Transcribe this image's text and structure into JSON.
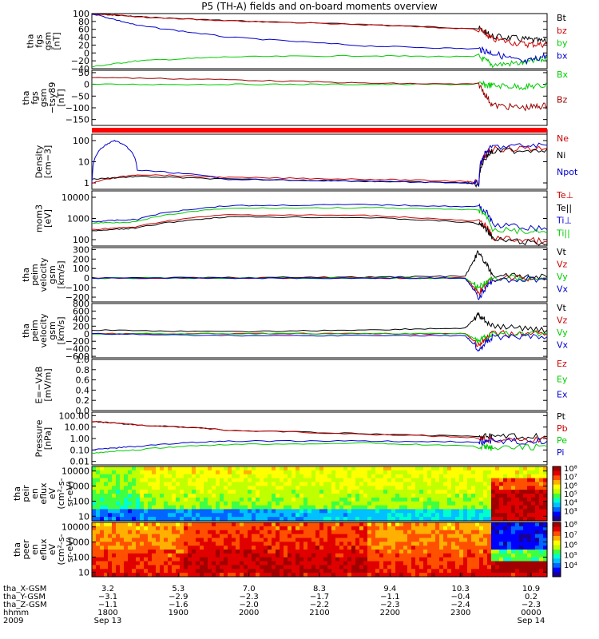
{
  "title": "P5 (TH-A) fields and on-board moments overview",
  "chart_data": [
    {
      "type": "line",
      "ylabel_lines": [
        "tha",
        "fgs",
        "gsm",
        "[nT]"
      ],
      "yticks": [
        "100",
        "80",
        "60",
        "40",
        "20",
        "0",
        "−20",
        "−40"
      ],
      "ylim": [
        -40,
        100
      ],
      "series": [
        {
          "name": "Bt",
          "color": "#000000",
          "x": [
            0,
            0.1,
            0.3,
            0.6,
            0.85,
            0.88,
            0.95,
            1
          ],
          "y": [
            100,
            92,
            82,
            72,
            62,
            42,
            35,
            28
          ]
        },
        {
          "name": "bz",
          "color": "#cc0000",
          "x": [
            0,
            0.1,
            0.3,
            0.6,
            0.85,
            0.88,
            0.95,
            1
          ],
          "y": [
            100,
            92,
            82,
            72,
            60,
            35,
            22,
            22
          ]
        },
        {
          "name": "by",
          "color": "#00cc00",
          "x": [
            0,
            0.1,
            0.3,
            0.6,
            0.85,
            0.88,
            0.95,
            1
          ],
          "y": [
            -35,
            -20,
            -10,
            -7,
            -10,
            -30,
            -25,
            -15
          ]
        },
        {
          "name": "bx",
          "color": "#0000cc",
          "x": [
            0,
            0.1,
            0.3,
            0.6,
            0.85,
            0.88,
            0.95,
            1
          ],
          "y": [
            100,
            70,
            40,
            18,
            10,
            0,
            -25,
            -5
          ]
        }
      ]
    },
    {
      "type": "line",
      "ylabel_lines": [
        "tha",
        "fgs",
        "gsm",
        "−tsy89",
        "[nT]"
      ],
      "yticks": [
        "50",
        "0",
        "−50",
        "−100",
        "−150"
      ],
      "ylim": [
        -175,
        60
      ],
      "series": [
        {
          "name": "Bx",
          "color": "#00cc00",
          "x": [
            0,
            0.3,
            0.6,
            0.85,
            0.88,
            0.95,
            1
          ],
          "y": [
            0,
            0,
            0,
            0,
            -5,
            -10,
            -5
          ]
        },
        {
          "name": "Bz",
          "color": "#990000",
          "x": [
            0,
            0.3,
            0.6,
            0.85,
            0.88,
            0.95,
            1
          ],
          "y": [
            30,
            20,
            5,
            0,
            -90,
            -100,
            -90
          ]
        }
      ]
    },
    {
      "type": "line",
      "ylabel_lines": [
        "Density",
        "[cm−3]"
      ],
      "yscale": "log",
      "yticks": [
        "100",
        "10",
        "1"
      ],
      "series": [
        {
          "name": "Ne",
          "color": "#cc0000",
          "x": [
            0,
            0.1,
            0.3,
            0.6,
            0.82,
            0.85,
            0.88,
            1
          ],
          "y": [
            1,
            2.5,
            1.8,
            1.5,
            1.2,
            1,
            40,
            45
          ]
        },
        {
          "name": "Ni",
          "color": "#000000",
          "x": [
            0,
            0.1,
            0.3,
            0.6,
            0.82,
            0.85,
            0.88,
            1
          ],
          "y": [
            1.5,
            2,
            1.5,
            1.2,
            1,
            0.9,
            30,
            40
          ]
        },
        {
          "name": "Npot",
          "color": "#0000cc",
          "x": [
            0,
            0.05,
            0.1,
            0.3,
            0.6,
            0.82,
            0.85,
            0.88,
            1
          ],
          "y": [
            1,
            100,
            4,
            1.5,
            1.2,
            1,
            0.9,
            50,
            60
          ]
        }
      ]
    },
    {
      "type": "line",
      "ylabel_lines": [
        "mom3",
        "[eV]"
      ],
      "yscale": "log",
      "yticks": [
        "10000",
        "1000",
        "100"
      ],
      "series": [
        {
          "name": "Te⊥",
          "color": "#cc0000",
          "x": [
            0,
            0.1,
            0.3,
            0.6,
            0.85,
            0.88,
            1
          ],
          "y": [
            300,
            400,
            1500,
            1400,
            700,
            120,
            80
          ]
        },
        {
          "name": "Te||",
          "color": "#000000",
          "x": [
            0,
            0.1,
            0.3,
            0.6,
            0.85,
            0.88,
            1
          ],
          "y": [
            250,
            350,
            1200,
            1100,
            600,
            100,
            60
          ]
        },
        {
          "name": "Ti⊥",
          "color": "#0000cc",
          "x": [
            0,
            0.1,
            0.3,
            0.6,
            0.85,
            0.88,
            1
          ],
          "y": [
            700,
            900,
            4000,
            4500,
            3500,
            500,
            300
          ]
        },
        {
          "name": "Ti||",
          "color": "#00cc00",
          "x": [
            0,
            0.1,
            0.3,
            0.6,
            0.85,
            0.88,
            1
          ],
          "y": [
            600,
            700,
            3000,
            3200,
            2500,
            300,
            200
          ]
        }
      ]
    },
    {
      "type": "line",
      "ylabel_lines": [
        "tha",
        "peim",
        "velocity",
        "gsm",
        "[km/s]"
      ],
      "yticks": [
        "300",
        "200",
        "100",
        "0",
        "−100",
        "−200"
      ],
      "ylim": [
        -250,
        320
      ],
      "series": [
        {
          "name": "Vt",
          "color": "#000000",
          "x": [
            0,
            0.3,
            0.6,
            0.82,
            0.85,
            0.88,
            1
          ],
          "y": [
            0,
            5,
            10,
            20,
            280,
            30,
            10
          ]
        },
        {
          "name": "Vz",
          "color": "#cc0000",
          "x": [
            0,
            0.3,
            0.6,
            0.82,
            0.85,
            0.88,
            1
          ],
          "y": [
            0,
            0,
            0,
            0,
            -150,
            0,
            0
          ]
        },
        {
          "name": "Vy",
          "color": "#00cc00",
          "x": [
            0,
            0.3,
            0.6,
            0.82,
            0.85,
            0.88,
            1
          ],
          "y": [
            0,
            0,
            0,
            0,
            -100,
            0,
            0
          ]
        },
        {
          "name": "Vx",
          "color": "#0000cc",
          "x": [
            0,
            0.3,
            0.6,
            0.82,
            0.85,
            0.88,
            1
          ],
          "y": [
            0,
            0,
            0,
            0,
            -200,
            -20,
            -10
          ]
        }
      ]
    },
    {
      "type": "line",
      "ylabel_lines": [
        "tha",
        "peim",
        "velocity",
        "gsm",
        "[km/s]"
      ],
      "yticks": [
        "800",
        "600",
        "400",
        "200",
        "0",
        "−200",
        "−400",
        "−600"
      ],
      "ylim": [
        -640,
        800
      ],
      "series": [
        {
          "name": "Vt",
          "color": "#000000",
          "x": [
            0,
            0.3,
            0.6,
            0.82,
            0.85,
            0.88,
            1
          ],
          "y": [
            100,
            50,
            100,
            150,
            500,
            200,
            100
          ]
        },
        {
          "name": "Vz",
          "color": "#cc0000",
          "x": [
            0,
            0.3,
            0.6,
            0.82,
            0.85,
            0.88,
            1
          ],
          "y": [
            0,
            0,
            0,
            0,
            -300,
            0,
            0
          ]
        },
        {
          "name": "Vy",
          "color": "#00cc00",
          "x": [
            0,
            0.3,
            0.6,
            0.82,
            0.85,
            0.88,
            1
          ],
          "y": [
            0,
            0,
            0,
            0,
            -200,
            0,
            0
          ]
        },
        {
          "name": "Vx",
          "color": "#0000cc",
          "x": [
            0,
            0.3,
            0.6,
            0.82,
            0.85,
            0.88,
            1
          ],
          "y": [
            0,
            -50,
            -50,
            -50,
            -400,
            -100,
            -80
          ]
        }
      ]
    },
    {
      "type": "line",
      "ylabel_lines": [
        "E=−VxB",
        "[mV/m]"
      ],
      "yticks": [
        "1.0",
        "0.8",
        "0.6",
        "0.4",
        "0.2",
        "0.0"
      ],
      "ylim": [
        0,
        1
      ],
      "series": [
        {
          "name": "Ez",
          "color": "#cc0000",
          "x": [],
          "y": []
        },
        {
          "name": "Ey",
          "color": "#00cc00",
          "x": [],
          "y": []
        },
        {
          "name": "Ex",
          "color": "#0000cc",
          "x": [],
          "y": []
        }
      ]
    },
    {
      "type": "line",
      "ylabel_lines": [
        "Pressure",
        "[nPa]"
      ],
      "yscale": "log",
      "yticks": [
        "100.00",
        "10.00",
        "1.00",
        "0.10",
        "0.01"
      ],
      "series": [
        {
          "name": "Pt",
          "color": "#000000",
          "x": [
            0,
            0.1,
            0.3,
            0.6,
            0.85,
            0.88,
            1
          ],
          "y": [
            30,
            15,
            5,
            2.5,
            1.5,
            1.5,
            1.5
          ]
        },
        {
          "name": "Pb",
          "color": "#cc0000",
          "x": [
            0,
            0.1,
            0.3,
            0.6,
            0.85,
            0.88,
            1
          ],
          "y": [
            30,
            15,
            5,
            2.2,
            1.2,
            0.8,
            0.8
          ]
        },
        {
          "name": "Pe",
          "color": "#00cc00",
          "x": [
            0,
            0.1,
            0.3,
            0.6,
            0.85,
            0.88,
            1
          ],
          "y": [
            0.05,
            0.1,
            0.3,
            0.4,
            0.2,
            0.15,
            0.2
          ]
        },
        {
          "name": "Pi",
          "color": "#0000cc",
          "x": [
            0,
            0.1,
            0.3,
            0.6,
            0.85,
            0.88,
            1
          ],
          "y": [
            0.1,
            0.2,
            0.6,
            0.6,
            0.5,
            0.6,
            0.6
          ]
        }
      ]
    },
    {
      "type": "heatmap",
      "ylabel_lines": [
        "tha",
        "peir",
        "en",
        "eflux",
        "eV",
        "(cm²-s-",
        "sr-eV)"
      ],
      "yscale": "log",
      "yticks": [
        "10000",
        "1000",
        "100",
        "10"
      ],
      "colorbar_ticks": [
        "10⁸",
        "10⁷",
        "10⁶",
        "10⁵",
        "10⁴",
        "10³"
      ]
    },
    {
      "type": "heatmap",
      "ylabel_lines": [
        "tha",
        "peer",
        "en",
        "eflux",
        "eV",
        "(cm²-s-",
        "sr-eV)"
      ],
      "yscale": "log",
      "yticks": [
        "10000",
        "1000",
        "100",
        "10"
      ],
      "colorbar_ticks": [
        "10⁸",
        "10⁷",
        "10⁶",
        "10⁵",
        "10⁴"
      ]
    }
  ],
  "xaxis": {
    "row_labels": [
      "tha_X-GSM",
      "tha_Y-GSM",
      "tha_Z-GSM",
      "hhmm",
      "2009"
    ],
    "ticks": [
      {
        "x": [
          "3.2",
          "−3.1",
          "−1.1",
          "1800"
        ],
        "date": "Sep 13"
      },
      {
        "x": [
          "5.3",
          "−2.9",
          "−1.6",
          "1900"
        ]
      },
      {
        "x": [
          "7.0",
          "−2.3",
          "−2.0",
          "2000"
        ]
      },
      {
        "x": [
          "8.3",
          "−1.7",
          "−2.2",
          "2100"
        ]
      },
      {
        "x": [
          "9.4",
          "−1.1",
          "−2.3",
          "2200"
        ]
      },
      {
        "x": [
          "10.3",
          "−0.4",
          "−2.4",
          "2300"
        ]
      },
      {
        "x": [
          "10.9",
          "0.2",
          "−2.3",
          "0000"
        ],
        "date": "Sep 14"
      }
    ]
  }
}
